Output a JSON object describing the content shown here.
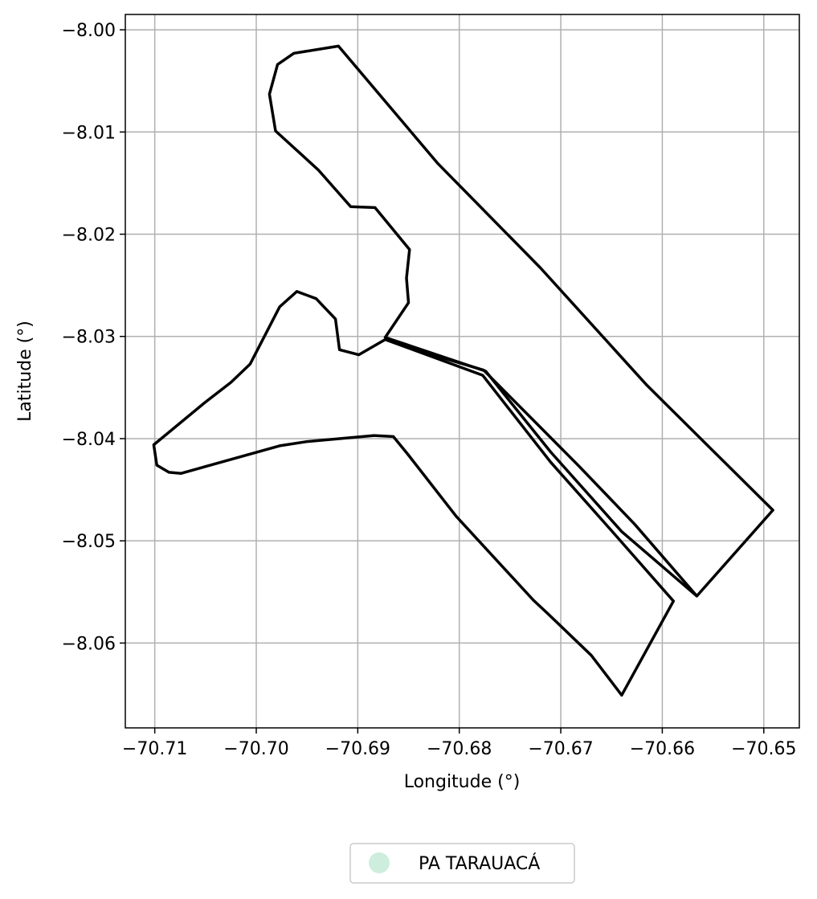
{
  "map": {
    "xlabel": "Longitude (°)",
    "ylabel": "Latitude (°)",
    "xlim": [
      -70.7129,
      -70.6465
    ],
    "ylim": [
      -8.0683,
      -7.9985
    ],
    "x_ticks": [
      -70.71,
      -70.7,
      -70.69,
      -70.68,
      -70.67,
      -70.66,
      -70.65
    ],
    "x_tick_labels": [
      "−70.71",
      "−70.70",
      "−70.69",
      "−70.68",
      "−70.67",
      "−70.66",
      "−70.65"
    ],
    "y_ticks": [
      -8.0,
      -8.01,
      -8.02,
      -8.03,
      -8.04,
      -8.05,
      -8.06
    ],
    "y_tick_labels": [
      "−8.00",
      "−8.01",
      "−8.02",
      "−8.03",
      "−8.04",
      "−8.05",
      "−8.06"
    ],
    "grid": true,
    "legend_position": "bottom-center",
    "legend_label": "PA TARAUACÁ",
    "colors": {
      "outline": "#000000",
      "grid": "#b0b0b0",
      "legend_marker": "#cdeedd"
    },
    "boundary_lon_lat": [
      [
        -70.6919,
        -8.0016
      ],
      [
        -70.6821,
        -8.0131
      ],
      [
        -70.672,
        -8.0233
      ],
      [
        -70.6615,
        -8.0348
      ],
      [
        -70.6491,
        -8.047
      ],
      [
        -70.6566,
        -8.0554
      ],
      [
        -70.6627,
        -8.0484
      ],
      [
        -70.6682,
        -8.0427
      ],
      [
        -70.6776,
        -8.0333
      ],
      [
        -70.6853,
        -8.031
      ],
      [
        -70.6873,
        -8.0301
      ],
      [
        -70.685,
        -8.0267
      ],
      [
        -70.6852,
        -8.0243
      ],
      [
        -70.6849,
        -8.0215
      ],
      [
        -70.6883,
        -8.0174
      ],
      [
        -70.6907,
        -8.0173
      ],
      [
        -70.6939,
        -8.0137
      ],
      [
        -70.6981,
        -8.0099
      ],
      [
        -70.6987,
        -8.0063
      ],
      [
        -70.6979,
        -8.0034
      ],
      [
        -70.6963,
        -8.0023
      ],
      [
        -70.6919,
        -8.0016
      ]
    ],
    "second_boundary_lon_lat": [
      [
        -70.6873,
        -8.0303
      ],
      [
        -70.6777,
        -8.0338
      ],
      [
        -70.671,
        -8.0423
      ],
      [
        -70.665,
        -8.049
      ],
      [
        -70.6589,
        -8.0559
      ],
      [
        -70.664,
        -8.0651
      ],
      [
        -70.667,
        -8.0612
      ],
      [
        -70.6713,
        -8.0571
      ],
      [
        -70.6727,
        -8.0558
      ],
      [
        -70.6803,
        -8.0476
      ],
      [
        -70.6851,
        -8.0415
      ],
      [
        -70.6865,
        -8.0398
      ],
      [
        -70.6884,
        -8.0397
      ],
      [
        -70.6951,
        -8.0403
      ],
      [
        -70.6977,
        -8.0407
      ],
      [
        -70.7074,
        -8.0434
      ],
      [
        -70.7086,
        -8.0433
      ],
      [
        -70.7098,
        -8.0426
      ],
      [
        -70.7101,
        -8.0406
      ],
      [
        -70.7051,
        -8.0365
      ],
      [
        -70.7025,
        -8.0345
      ],
      [
        -70.7006,
        -8.0327
      ],
      [
        -70.6977,
        -8.0271
      ],
      [
        -70.696,
        -8.0256
      ],
      [
        -70.6941,
        -8.0263
      ],
      [
        -70.6922,
        -8.0283
      ],
      [
        -70.6918,
        -8.0313
      ],
      [
        -70.6899,
        -8.0318
      ],
      [
        -70.6873,
        -8.0303
      ]
    ],
    "inner_line_lon_lat": [
      [
        -70.6873,
        -8.0301
      ],
      [
        -70.6774,
        -8.0334
      ],
      [
        -70.671,
        -8.0413
      ],
      [
        -70.664,
        -8.0491
      ],
      [
        -70.6566,
        -8.0554
      ]
    ]
  }
}
